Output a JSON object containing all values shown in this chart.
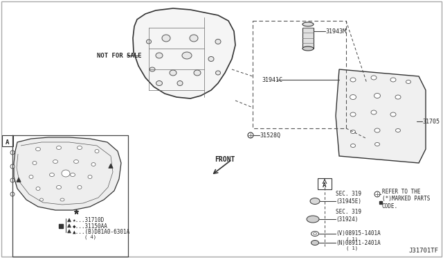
{
  "title": "",
  "background_color": "#ffffff",
  "fig_width": 6.4,
  "fig_height": 3.72,
  "dpi": 100,
  "border_color": "#cccccc",
  "text_color": "#222222",
  "diagram_image_color": "#888888",
  "labels": {
    "not_for_sale": "NOT FOR SALE",
    "front": "FRONT",
    "part_31943M": "31943M",
    "part_31941C": "31941C",
    "part_31705": "31705",
    "part_31528Q": "31528Q",
    "part_31710D": "31710D",
    "part_31150AA": "31150AA",
    "part_D81A0_6301A": "(B)D81A0-6301A",
    "part_qty_4": "( 4)",
    "sec_319_31945E": "SEC. 319\n(31945E)",
    "sec_319_31924": "SEC. 319\n(31924)",
    "part_08915_1401A": "(V)08915-1401A",
    "part_08911_2401A": "(N)08911-2401A",
    "qty_1a": "( 1)",
    "qty_1b": "( 1)",
    "refer_to": "REFER TO THE\n(*)MARKED PARTS\nCODE.",
    "box_A": "A",
    "diagram_id": "J31701TF"
  }
}
